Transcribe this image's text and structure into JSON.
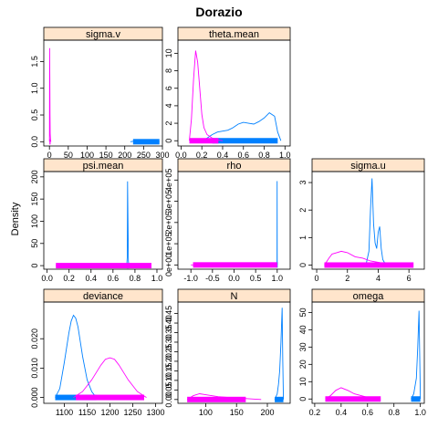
{
  "chart_data": {
    "type": "line",
    "title": "Dorazio",
    "ylabel": "Density",
    "colors": {
      "series_a": "#0080ff",
      "series_b": "#ff00ff",
      "strip": "#ffe5cc"
    },
    "panels": [
      {
        "title": "sigma.v",
        "xlim": [
          -15,
          300
        ],
        "ylim": [
          -0.08,
          1.9
        ],
        "xticks": [
          0,
          50,
          100,
          150,
          200,
          250,
          300
        ],
        "xtick_labels": [
          "0",
          "50",
          "100",
          "150",
          "200",
          "250",
          "300"
        ],
        "yticks": [
          0.0,
          0.5,
          1.0,
          1.5
        ],
        "ytick_labels": [
          "0.0",
          "0.5",
          "1.0",
          "1.5"
        ],
        "series": [
          {
            "color": "#0080ff",
            "x": [
              215,
              225,
              235,
              245,
              255,
              265,
              275,
              285,
              292
            ],
            "y": [
              0,
              0.01,
              0.03,
              0.04,
              0.04,
              0.03,
              0.03,
              0.01,
              0
            ],
            "rug": [
              222,
              292
            ]
          },
          {
            "color": "#ff00ff",
            "x": [
              0,
              0.5,
              1,
              1.5,
              2,
              3,
              4
            ],
            "y": [
              0,
              1.75,
              1.2,
              0.5,
              0.15,
              0.03,
              0
            ],
            "rug": [
              0,
              3
            ]
          }
        ]
      },
      {
        "title": "theta.mean",
        "xlim": [
          -0.03,
          1.05
        ],
        "ylim": [
          -0.6,
          11.5
        ],
        "xticks": [
          0,
          0.2,
          0.4,
          0.6,
          0.8,
          1.0
        ],
        "xtick_labels": [
          "0.0",
          "0.2",
          "0.4",
          "0.6",
          "0.8",
          "1.0"
        ],
        "yticks": [
          0,
          2,
          4,
          6,
          8,
          10
        ],
        "ytick_labels": [
          "0",
          "2",
          "4",
          "6",
          "8",
          "10"
        ],
        "series": [
          {
            "color": "#0080ff",
            "x": [
              0.2,
              0.25,
              0.3,
              0.35,
              0.4,
              0.45,
              0.5,
              0.55,
              0.6,
              0.65,
              0.7,
              0.75,
              0.8,
              0.85,
              0.9,
              0.93,
              0.96
            ],
            "y": [
              0,
              0.3,
              0.7,
              1.0,
              1.1,
              1.2,
              1.5,
              1.9,
              2.1,
              2.0,
              1.9,
              2.2,
              2.6,
              3.2,
              2.8,
              1.0,
              0
            ],
            "rug": [
              0.3,
              0.93
            ]
          },
          {
            "color": "#ff00ff",
            "x": [
              0.08,
              0.1,
              0.12,
              0.14,
              0.16,
              0.18,
              0.2,
              0.22,
              0.25,
              0.3,
              0.35,
              0.4
            ],
            "y": [
              0,
              2.5,
              7,
              10.3,
              9,
              6,
              3,
              1.5,
              0.7,
              0.3,
              0.1,
              0
            ],
            "rug": [
              0.08,
              0.36
            ]
          }
        ]
      },
      {
        "title": "psi.mean",
        "xlim": [
          -0.03,
          1.05
        ],
        "ylim": [
          -8,
          212
        ],
        "xticks": [
          0,
          0.2,
          0.4,
          0.6,
          0.8,
          1.0
        ],
        "xtick_labels": [
          "0.0",
          "0.2",
          "0.4",
          "0.6",
          "0.8",
          "1.0"
        ],
        "yticks": [
          0,
          50,
          100,
          150,
          200
        ],
        "ytick_labels": [
          "0",
          "50",
          "100",
          "150",
          "200"
        ],
        "series": [
          {
            "color": "#0080ff",
            "x": [
              0.725,
              0.73,
              0.733,
              0.736,
              0.74,
              0.745
            ],
            "y": [
              0,
              20,
              190,
              110,
              10,
              0
            ],
            "rug": [
              0.725,
              0.745
            ]
          },
          {
            "color": "#ff00ff",
            "x": [
              0.08,
              0.15,
              0.3,
              0.5,
              0.7,
              0.85,
              0.95
            ],
            "y": [
              0,
              1,
              2,
              2,
              2,
              1,
              0
            ],
            "rug": [
              0.08,
              0.95
            ]
          }
        ]
      },
      {
        "title": "rho",
        "xlim": [
          -1.3,
          1.3
        ],
        "ylim": [
          -20000,
          440000
        ],
        "xticks": [
          -1.0,
          -0.5,
          0.0,
          0.5,
          1.0
        ],
        "xtick_labels": [
          "-1.0",
          "-0.5",
          "0.0",
          "0.5",
          "1.0"
        ],
        "yticks": [
          0,
          100000,
          200000,
          300000,
          400000
        ],
        "ytick_labels": [
          "0e+00",
          "1e+05",
          "2e+05",
          "3e+05",
          "4e+05"
        ],
        "series": [
          {
            "color": "#0080ff",
            "x": [
              0.99,
              0.995,
              0.998,
              1.0
            ],
            "y": [
              0,
              5000,
              395000,
              0
            ],
            "rug": [
              0.99,
              1.0
            ]
          },
          {
            "color": "#ff00ff",
            "x": [
              -1,
              -0.5,
              0,
              0.5,
              1
            ],
            "y": [
              0,
              0,
              0,
              0,
              0
            ],
            "rug": [
              -0.95,
              1.0
            ]
          }
        ]
      },
      {
        "title": "sigma.u",
        "xlim": [
          -0.3,
          7
        ],
        "ylim": [
          -0.15,
          3.4
        ],
        "xticks": [
          0,
          2,
          4,
          6
        ],
        "xtick_labels": [
          "0",
          "2",
          "4",
          "6"
        ],
        "yticks": [
          0,
          1,
          2,
          3
        ],
        "ytick_labels": [
          "0",
          "1",
          "2",
          "3"
        ],
        "series": [
          {
            "color": "#0080ff",
            "x": [
              3.2,
              3.4,
              3.5,
              3.6,
              3.7,
              3.8,
              3.9,
              4.0,
              4.1,
              4.2,
              4.3,
              4.5
            ],
            "y": [
              0,
              0.5,
              2.0,
              3.15,
              1.5,
              0.8,
              0.6,
              1.2,
              1.4,
              0.6,
              0.2,
              0
            ],
            "rug": [
              3.3,
              4.5
            ]
          },
          {
            "color": "#ff00ff",
            "x": [
              0.5,
              0.8,
              1.0,
              1.3,
              1.6,
              2.0,
              2.5,
              3.0,
              3.5,
              4.0,
              4.5,
              5.0,
              6.0
            ],
            "y": [
              0,
              0.25,
              0.4,
              0.45,
              0.5,
              0.45,
              0.3,
              0.25,
              0.15,
              0.1,
              0.05,
              0.02,
              0
            ],
            "rug": [
              0.5,
              6.3
            ]
          }
        ]
      },
      {
        "title": "deviance",
        "xlim": [
          1055,
          1315
        ],
        "ylim": [
          -0.002,
          0.0325
        ],
        "xticks": [
          1100,
          1150,
          1200,
          1250,
          1300
        ],
        "xtick_labels": [
          "1100",
          "1150",
          "1200",
          "1250",
          "1300"
        ],
        "yticks": [
          0,
          0.01,
          0.02
        ],
        "ytick_labels": [
          "0.000",
          "0.010",
          "0.020"
        ],
        "series": [
          {
            "color": "#0080ff",
            "x": [
              1080,
              1090,
              1100,
              1110,
              1115,
              1120,
              1125,
              1130,
              1140,
              1150,
              1160,
              1170
            ],
            "y": [
              0,
              0.003,
              0.012,
              0.022,
              0.026,
              0.028,
              0.027,
              0.024,
              0.014,
              0.006,
              0.002,
              0
            ],
            "rug": [
              1080,
              1170
            ]
          },
          {
            "color": "#ff00ff",
            "x": [
              1120,
              1140,
              1160,
              1180,
              1190,
              1200,
              1210,
              1220,
              1240,
              1260,
              1280
            ],
            "y": [
              0,
              0.002,
              0.006,
              0.011,
              0.013,
              0.0135,
              0.013,
              0.011,
              0.006,
              0.002,
              0
            ],
            "rug": [
              1125,
              1275
            ]
          }
        ]
      },
      {
        "title": "N",
        "xlim": [
          55,
          237
        ],
        "ylim": [
          -0.02,
          0.51
        ],
        "xticks": [
          100,
          150,
          200
        ],
        "xtick_labels": [
          "100",
          "150",
          "200"
        ],
        "yticks": [
          0,
          0.05,
          0.1,
          0.15,
          0.2,
          0.25,
          0.3,
          0.35,
          0.4,
          0.45
        ],
        "ytick_labels": [
          "0.00",
          "0.05",
          "0.10",
          "0.15",
          "0.20",
          "0.25",
          "0.30",
          "0.35",
          "0.40",
          "0.45"
        ],
        "series": [
          {
            "color": "#0080ff",
            "x": [
              212,
              216,
              218,
              220,
              222,
              224,
              225,
              226
            ],
            "y": [
              0,
              0.03,
              0.08,
              0.15,
              0.3,
              0.48,
              0.2,
              0
            ],
            "rug": [
              212,
              226
            ]
          },
          {
            "color": "#ff00ff",
            "x": [
              70,
              80,
              90,
              100,
              120,
              140,
              160,
              180,
              190
            ],
            "y": [
              0,
              0.02,
              0.03,
              0.025,
              0.015,
              0.01,
              0.006,
              0.002,
              0
            ],
            "rug": [
              70,
              165
            ]
          }
        ]
      },
      {
        "title": "omega",
        "xlim": [
          0.18,
          1.03
        ],
        "ylim": [
          -2.5,
          56
        ],
        "xticks": [
          0.2,
          0.4,
          0.6,
          0.8,
          1.0
        ],
        "xtick_labels": [
          "0.2",
          "0.4",
          "0.6",
          "0.8",
          "1.0"
        ],
        "yticks": [
          0,
          10,
          20,
          30,
          40,
          50
        ],
        "ytick_labels": [
          "0",
          "10",
          "20",
          "30",
          "40",
          "50"
        ],
        "series": [
          {
            "color": "#0080ff",
            "x": [
              0.93,
              0.95,
              0.97,
              0.98,
              0.99,
              1.0
            ],
            "y": [
              0,
              3,
              12,
              30,
              51,
              0
            ],
            "rug": [
              0.93,
              1.0
            ]
          },
          {
            "color": "#ff00ff",
            "x": [
              0.28,
              0.32,
              0.36,
              0.4,
              0.45,
              0.5,
              0.6,
              0.7
            ],
            "y": [
              0,
              2,
              5,
              6.5,
              5,
              3,
              1,
              0
            ],
            "rug": [
              0.28,
              0.7
            ]
          }
        ]
      }
    ]
  }
}
